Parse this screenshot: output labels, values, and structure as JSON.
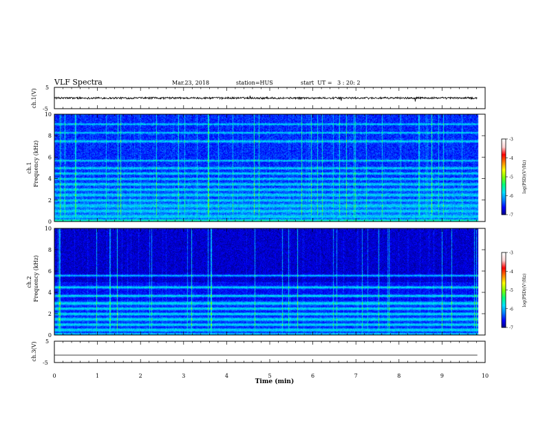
{
  "header": {
    "title": "VLF Spectra",
    "date": "Mar.23, 2018",
    "station": "station=HUS",
    "start": "start  UT =   3 : 20: 2"
  },
  "colors": {
    "waveform": "#000000",
    "colormap": [
      "#000080",
      "#0000ff",
      "#0080ff",
      "#00e0ff",
      "#00ff80",
      "#80ff00",
      "#ffff00",
      "#ff8000",
      "#ff0000",
      "#ffd0d0",
      "#ffffff"
    ]
  },
  "chart_data": [
    {
      "type": "line",
      "panel": "ch1-waveform",
      "ylabel": "ch.1(V)",
      "ylim": [
        -5,
        5
      ],
      "y_ticks": [
        "5",
        "-5"
      ],
      "xlim": [
        0,
        10
      ],
      "baseline_value": 0,
      "description_series": "noise waveform near 0 V"
    },
    {
      "type": "heatmap",
      "panel": "ch1-spectrogram",
      "ylabel_lines": [
        "ch.1",
        "Frequency (kHz)"
      ],
      "ylim": [
        0,
        10
      ],
      "y_ticks": [
        "0",
        "2",
        "4",
        "6",
        "8",
        "10"
      ],
      "xlim": [
        0,
        10
      ],
      "colorbar": {
        "label": "log(PSD)(V²/Hz)",
        "range": [
          -7,
          -3
        ],
        "ticks": [
          "-3",
          "-4",
          "-5",
          "-6",
          "-7"
        ]
      }
    },
    {
      "type": "heatmap",
      "panel": "ch2-spectrogram",
      "ylabel_lines": [
        "ch.2",
        "Frequency (kHz)"
      ],
      "ylim": [
        0,
        10
      ],
      "y_ticks": [
        "0",
        "2",
        "4",
        "6",
        "8",
        "10"
      ],
      "xlim": [
        0,
        10
      ],
      "colorbar": {
        "label": "log(PSD)(V²/Hz)",
        "range": [
          -7,
          -3
        ],
        "ticks": [
          "-3",
          "-4",
          "-5",
          "-6",
          "-7"
        ]
      }
    },
    {
      "type": "line",
      "panel": "ch3-waveform",
      "ylabel": "ch.3(V)",
      "ylim": [
        -5,
        5
      ],
      "y_ticks": [
        "5",
        "-5"
      ],
      "xlim": [
        0,
        10
      ],
      "baseline_value": -1.5
    }
  ],
  "xaxis": {
    "label": "Time (min)",
    "ticks": [
      "0",
      "1",
      "2",
      "3",
      "4",
      "5",
      "6",
      "7",
      "8",
      "9",
      "10"
    ]
  }
}
